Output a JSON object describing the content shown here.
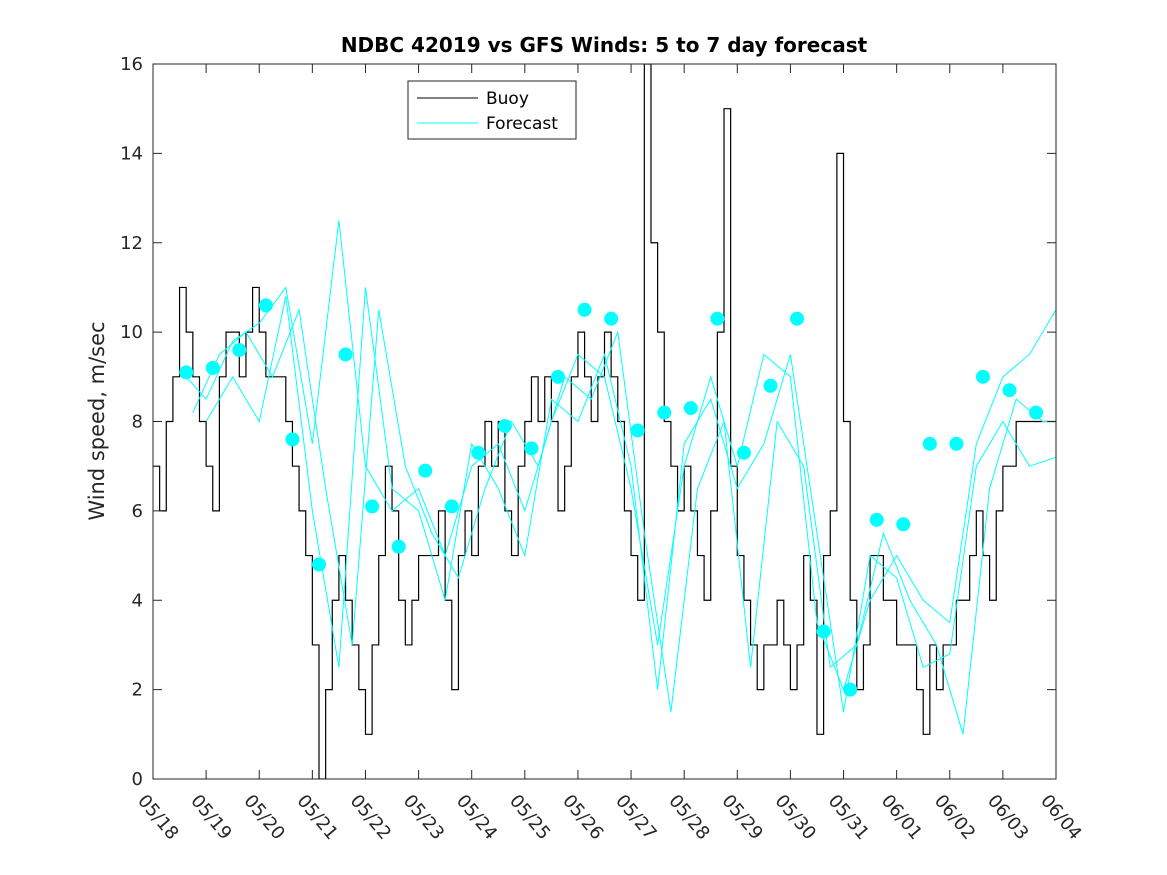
{
  "chart_data": {
    "type": "line",
    "title": "NDBC 42019 vs GFS Winds: 5 to 7 day forecast",
    "xlabel": "",
    "ylabel": "Wind speed, m/sec",
    "x_unit": "days",
    "xlim": [
      "05/18",
      "06/04"
    ],
    "ylim": [
      0,
      16
    ],
    "yticks": [
      0,
      2,
      4,
      6,
      8,
      10,
      12,
      14,
      16
    ],
    "xtick_labels": [
      "05/18",
      "05/19",
      "05/20",
      "05/21",
      "05/22",
      "05/23",
      "05/24",
      "05/25",
      "05/26",
      "05/27",
      "05/28",
      "05/29",
      "05/30",
      "05/31",
      "06/01",
      "06/02",
      "06/03",
      "06/04"
    ],
    "grid": false,
    "legend_position": "top-center",
    "colors": {
      "buoy": "#000000",
      "forecast": "#00ffff",
      "axes": "#262626"
    },
    "legend": [
      {
        "label": "Buoy",
        "color": "#000000"
      },
      {
        "label": "Forecast",
        "color": "#00ffff"
      }
    ],
    "series": [
      {
        "name": "Buoy",
        "style": "stepped-line",
        "color": "#000000",
        "x": [
          "05/18 00:00",
          "05/18 03:00",
          "05/18 06:00",
          "05/18 09:00",
          "05/18 12:00",
          "05/18 15:00",
          "05/18 18:00",
          "05/18 21:00",
          "05/19 00:00",
          "05/19 03:00",
          "05/19 06:00",
          "05/19 09:00",
          "05/19 12:00",
          "05/19 15:00",
          "05/19 18:00",
          "05/19 21:00",
          "05/20 00:00",
          "05/20 03:00",
          "05/20 06:00",
          "05/20 09:00",
          "05/20 12:00",
          "05/20 15:00",
          "05/20 18:00",
          "05/20 21:00",
          "05/21 00:00",
          "05/21 03:00",
          "05/21 06:00",
          "05/21 09:00",
          "05/21 12:00",
          "05/21 15:00",
          "05/21 18:00",
          "05/21 21:00",
          "05/22 00:00",
          "05/22 03:00",
          "05/22 06:00",
          "05/22 09:00",
          "05/22 12:00",
          "05/22 15:00",
          "05/22 18:00",
          "05/22 21:00",
          "05/23 00:00",
          "05/23 03:00",
          "05/23 06:00",
          "05/23 09:00",
          "05/23 12:00",
          "05/23 15:00",
          "05/23 18:00",
          "05/23 21:00",
          "05/24 00:00",
          "05/24 03:00",
          "05/24 06:00",
          "05/24 09:00",
          "05/24 12:00",
          "05/24 15:00",
          "05/24 18:00",
          "05/24 21:00",
          "05/25 00:00",
          "05/25 03:00",
          "05/25 06:00",
          "05/25 09:00",
          "05/25 12:00",
          "05/25 15:00",
          "05/25 18:00",
          "05/25 21:00",
          "05/26 00:00",
          "05/26 03:00",
          "05/26 06:00",
          "05/26 09:00",
          "05/26 12:00",
          "05/26 15:00",
          "05/26 18:00",
          "05/26 21:00",
          "05/27 00:00",
          "05/27 03:00",
          "05/27 06:00",
          "05/27 09:00",
          "05/27 12:00",
          "05/27 15:00",
          "05/27 18:00",
          "05/27 21:00",
          "05/28 00:00",
          "05/28 03:00",
          "05/28 06:00",
          "05/28 09:00",
          "05/28 12:00",
          "05/28 15:00",
          "05/28 18:00",
          "05/28 21:00",
          "05/29 00:00",
          "05/29 03:00",
          "05/29 06:00",
          "05/29 09:00",
          "05/29 12:00",
          "05/29 15:00",
          "05/29 18:00",
          "05/29 21:00",
          "05/30 00:00",
          "05/30 03:00",
          "05/30 06:00",
          "05/30 09:00",
          "05/30 12:00",
          "05/30 15:00",
          "05/30 18:00",
          "05/30 21:00",
          "05/31 00:00",
          "05/31 03:00",
          "05/31 06:00",
          "05/31 09:00",
          "05/31 12:00",
          "05/31 15:00",
          "05/31 18:00",
          "05/31 21:00",
          "06/01 00:00",
          "06/01 03:00",
          "06/01 06:00",
          "06/01 09:00",
          "06/01 12:00",
          "06/01 15:00",
          "06/01 18:00",
          "06/01 21:00",
          "06/02 00:00",
          "06/02 03:00",
          "06/02 06:00",
          "06/02 09:00",
          "06/02 12:00",
          "06/02 15:00",
          "06/02 18:00",
          "06/02 21:00",
          "06/03 00:00",
          "06/03 03:00",
          "06/03 06:00",
          "06/03 09:00",
          "06/03 12:00",
          "06/03 15:00",
          "06/03 18:00",
          "06/03 21:00",
          "06/04 00:00"
        ],
        "y": [
          7,
          6,
          8,
          9,
          11,
          10,
          9,
          8,
          7,
          6,
          9,
          10,
          10,
          9,
          10,
          11,
          10,
          9,
          9,
          9,
          8,
          7,
          6,
          5,
          3,
          0,
          2,
          4,
          5,
          4,
          3,
          2,
          1,
          3,
          5,
          7,
          6,
          4,
          3,
          4,
          5,
          5,
          5,
          6,
          4,
          2,
          5,
          6,
          5,
          7,
          8,
          7,
          8,
          6,
          5,
          7,
          8,
          9,
          8,
          9,
          8,
          6,
          7,
          9,
          10,
          9,
          8,
          9,
          10,
          9,
          8,
          6,
          5,
          4,
          16,
          12,
          10,
          8,
          7,
          6,
          7,
          6,
          5,
          4,
          6,
          10,
          15,
          7,
          5,
          4,
          3,
          2,
          3,
          3,
          4,
          3,
          2,
          3,
          5,
          4,
          1,
          5,
          6,
          14,
          8,
          4,
          2,
          3,
          5,
          5,
          4,
          4,
          3,
          3,
          3,
          2,
          1,
          3,
          2,
          3,
          3,
          4,
          4,
          5,
          6,
          5,
          4,
          6,
          7,
          7,
          8,
          8,
          8,
          8,
          8,
          8,
          8
        ]
      },
      {
        "name": "Forecast",
        "style": "markers",
        "color": "#00ffff",
        "x": [
          "05/18 15:00",
          "05/19 03:00",
          "05/19 15:00",
          "05/20 03:00",
          "05/20 15:00",
          "05/21 03:00",
          "05/21 15:00",
          "05/22 03:00",
          "05/22 15:00",
          "05/23 03:00",
          "05/23 15:00",
          "05/24 03:00",
          "05/24 15:00",
          "05/25 03:00",
          "05/25 15:00",
          "05/26 03:00",
          "05/26 15:00",
          "05/27 03:00",
          "05/27 15:00",
          "05/28 03:00",
          "05/28 15:00",
          "05/29 03:00",
          "05/29 15:00",
          "05/30 03:00",
          "05/30 15:00",
          "05/31 03:00",
          "05/31 15:00",
          "06/01 03:00",
          "06/01 15:00",
          "06/02 03:00",
          "06/02 15:00",
          "06/03 03:00",
          "06/03 15:00"
        ],
        "y": [
          9.1,
          9.2,
          9.6,
          10.6,
          7.6,
          4.8,
          9.5,
          6.1,
          5.2,
          6.9,
          6.1,
          7.3,
          7.9,
          7.4,
          9.0,
          10.5,
          10.3,
          7.8,
          8.2,
          8.3,
          10.3,
          7.3,
          8.8,
          10.3,
          3.3,
          2.0,
          5.8,
          5.7,
          7.5,
          7.5,
          9.0,
          8.7,
          8.2
        ]
      },
      {
        "name": "",
        "style": "line",
        "color": "#00ffff",
        "x": [
          "05/18 15:00",
          "05/19 00:00",
          "05/19 12:00",
          "05/20 00:00",
          "05/20 12:00",
          "05/21 00:00",
          "05/21 12:00",
          "05/22 00:00",
          "05/22 12:00",
          "05/23 00:00",
          "05/23 12:00",
          "05/24 00:00",
          "05/24 12:00",
          "05/25 00:00",
          "05/25 12:00",
          "05/26 00:00",
          "05/26 12:00",
          "05/27 00:00",
          "05/27 12:00",
          "05/28 00:00",
          "05/28 12:00",
          "05/29 00:00",
          "05/29 12:00",
          "05/30 00:00",
          "05/30 12:00",
          "05/31 00:00",
          "05/31 12:00",
          "06/01 00:00",
          "06/01 12:00",
          "06/02 00:00",
          "06/02 12:00",
          "06/03 00:00",
          "06/03 12:00",
          "06/04 00:00"
        ],
        "y": [
          9.0,
          8.5,
          9.8,
          10.2,
          11.0,
          7.5,
          12.5,
          7.0,
          6.0,
          6.5,
          5.0,
          7.0,
          7.5,
          6.0,
          8.0,
          9.5,
          9.0,
          6.5,
          3.0,
          7.0,
          9.0,
          7.0,
          9.5,
          9.0,
          3.5,
          2.0,
          4.0,
          5.0,
          4.0,
          3.5,
          7.5,
          9.0,
          9.5,
          10.5
        ]
      },
      {
        "name": "",
        "style": "line",
        "color": "#00ffff",
        "x": [
          "05/18 18:00",
          "05/19 06:00",
          "05/19 18:00",
          "05/20 06:00",
          "05/20 18:00",
          "05/21 06:00",
          "05/21 18:00",
          "05/22 06:00",
          "05/22 18:00",
          "05/23 06:00",
          "05/23 18:00",
          "05/24 06:00",
          "05/24 18:00",
          "05/25 06:00",
          "05/25 18:00",
          "05/26 06:00",
          "05/26 18:00",
          "05/27 06:00",
          "05/27 18:00",
          "05/28 06:00",
          "05/28 18:00",
          "05/29 06:00",
          "05/29 18:00",
          "05/30 06:00",
          "05/30 18:00",
          "05/31 06:00",
          "05/31 18:00",
          "06/01 06:00",
          "06/01 18:00",
          "06/02 06:00",
          "06/02 18:00",
          "06/03 06:00",
          "06/03 18:00",
          "06/04 00:00"
        ],
        "y": [
          8.2,
          9.5,
          10.0,
          9.0,
          10.5,
          6.5,
          3.0,
          10.5,
          7.0,
          5.5,
          4.5,
          6.5,
          8.0,
          7.0,
          9.0,
          8.5,
          10.0,
          5.5,
          1.5,
          6.5,
          8.0,
          2.5,
          8.0,
          7.0,
          2.5,
          3.0,
          5.5,
          4.0,
          3.0,
          1.0,
          6.5,
          8.5,
          8.0,
          8.0
        ]
      },
      {
        "name": "",
        "style": "line",
        "color": "#00ffff",
        "x": [
          "05/19 00:00",
          "05/19 12:00",
          "05/20 00:00",
          "05/20 12:00",
          "05/21 00:00",
          "05/21 12:00",
          "05/22 00:00",
          "05/22 12:00",
          "05/23 00:00",
          "05/23 12:00",
          "05/24 00:00",
          "05/24 12:00",
          "05/25 00:00",
          "05/25 12:00",
          "05/26 00:00",
          "05/26 12:00",
          "05/27 00:00",
          "05/27 12:00",
          "05/28 00:00",
          "05/28 12:00",
          "05/29 00:00",
          "05/29 12:00",
          "05/30 00:00",
          "05/30 12:00",
          "05/31 00:00",
          "05/31 12:00",
          "06/01 00:00",
          "06/01 12:00",
          "06/02 00:00",
          "06/02 12:00",
          "06/03 00:00",
          "06/03 12:00",
          "06/04 00:00"
        ],
        "y": [
          8.0,
          9.0,
          8.0,
          10.8,
          6.0,
          2.5,
          11.0,
          6.5,
          6.0,
          4.0,
          7.5,
          6.5,
          5.0,
          8.5,
          8.0,
          9.5,
          7.0,
          2.0,
          7.5,
          8.5,
          6.5,
          7.5,
          9.5,
          5.5,
          1.5,
          5.0,
          4.5,
          2.5,
          2.8,
          7.0,
          8.0,
          7.0,
          7.2
        ]
      }
    ]
  }
}
